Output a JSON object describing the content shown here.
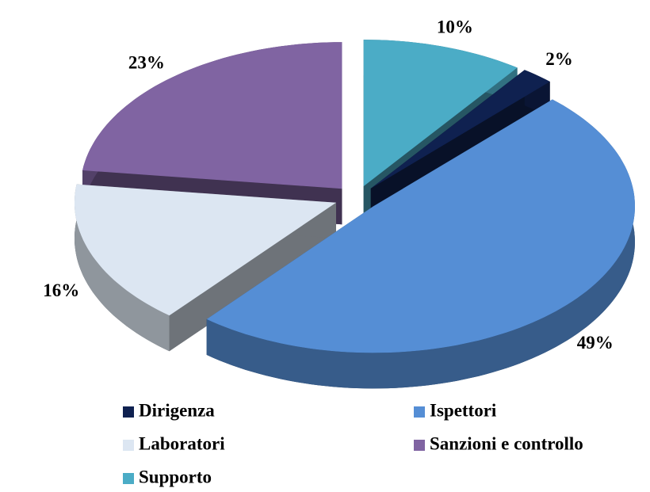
{
  "chart_data": {
    "type": "pie",
    "categories": [
      "Dirigenza",
      "Ispettori",
      "Laboratori",
      "Sanzioni e controllo",
      "Supporto"
    ],
    "values": [
      2,
      49,
      16,
      23,
      10
    ],
    "value_labels": [
      "2%",
      "49%",
      "16%",
      "23%",
      "10%"
    ],
    "colors": [
      "#0f2150",
      "#558ed5",
      "#dce6f2",
      "#8064a2",
      "#4bacc6"
    ],
    "legend": "bottom"
  }
}
